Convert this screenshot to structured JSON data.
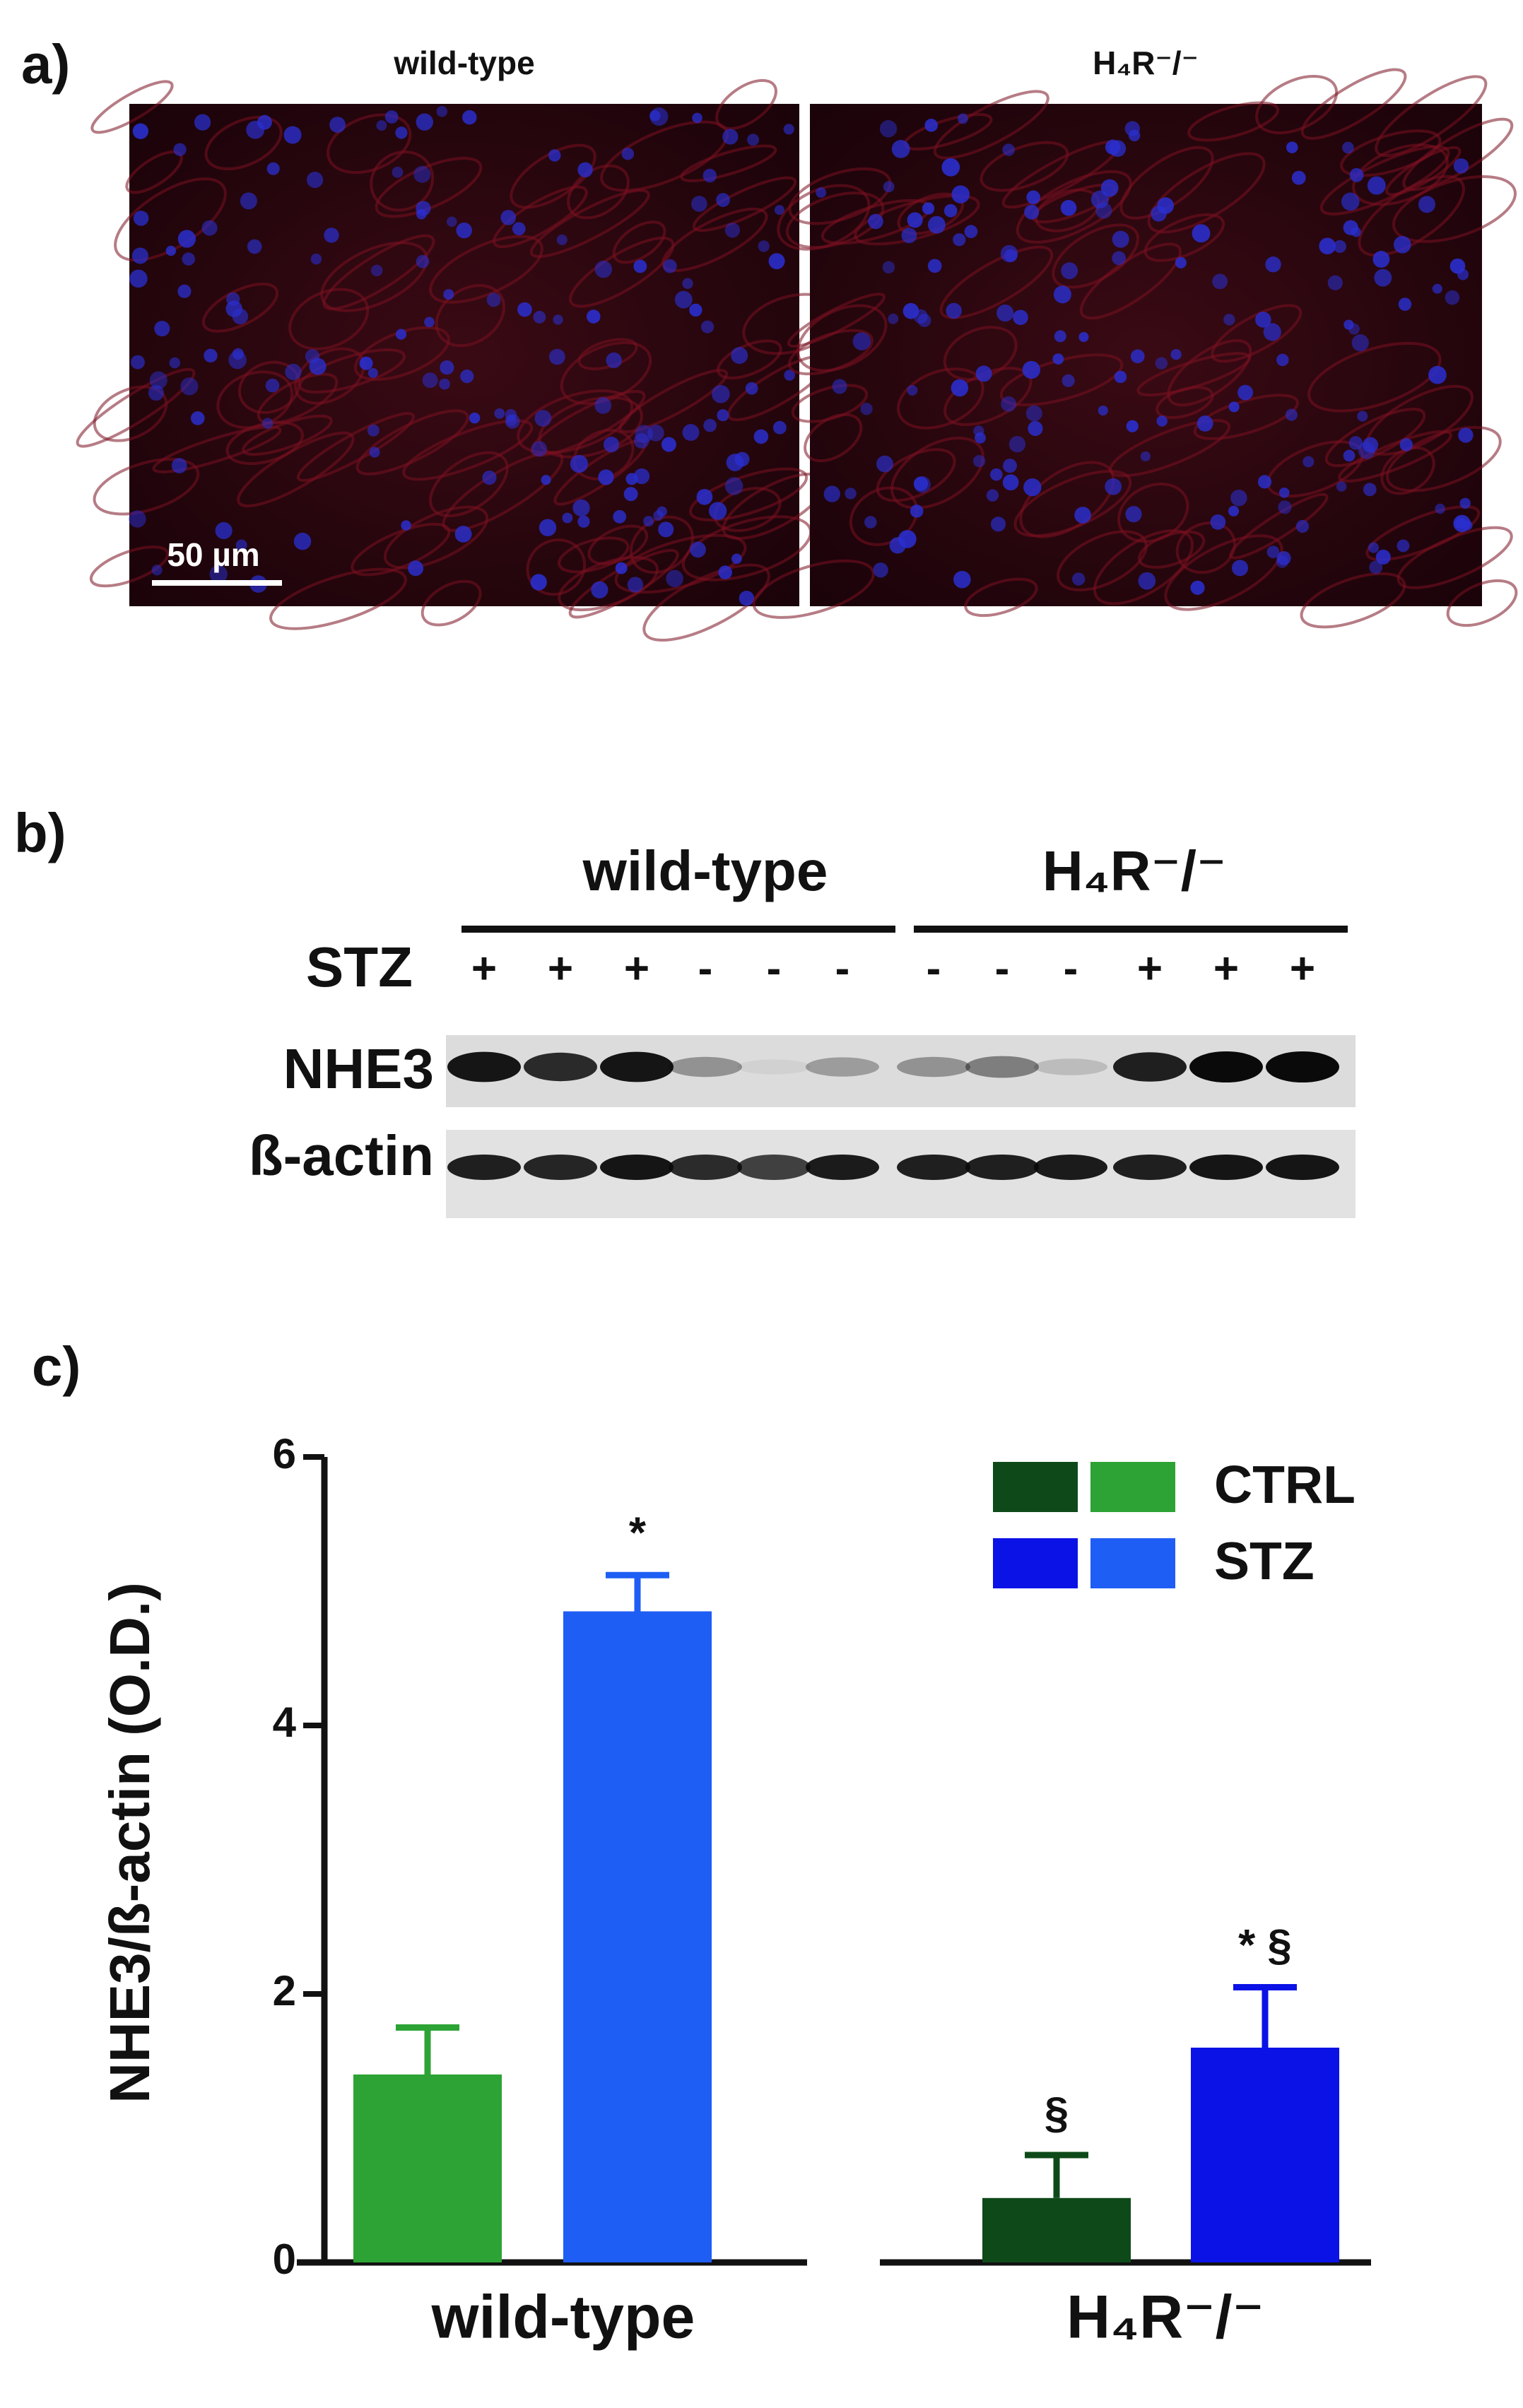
{
  "panel_a": {
    "label": "a)",
    "titles": [
      "wild-type",
      "H₄R⁻/⁻"
    ],
    "scale_bar": "50 µm"
  },
  "panel_b": {
    "label": "b)",
    "groups": [
      "wild-type",
      "H₄R⁻/⁻"
    ],
    "treatment_label": "STZ",
    "lanes": [
      "+",
      "+",
      "+",
      "-",
      "-",
      "-",
      "-",
      "-",
      "-",
      "+",
      "+",
      "+"
    ],
    "rows": [
      "NHE3",
      "ß-actin"
    ]
  },
  "chart_data": {
    "type": "bar",
    "panel_label": "c)",
    "y_label": "NHE3/ß-actin (O.D.)",
    "categories": [
      "wild-type",
      "H₄R⁻/⁻"
    ],
    "series": [
      {
        "name": "CTRL",
        "colors": [
          "#2ca334",
          "#0e4a19"
        ],
        "values": [
          1.4,
          0.48
        ],
        "errors": [
          0.35,
          0.32
        ],
        "annotations": [
          null,
          "§"
        ]
      },
      {
        "name": "STZ",
        "colors": [
          "#1f5ef4",
          "#0b12e6"
        ],
        "values": [
          4.85,
          1.6
        ],
        "errors": [
          0.27,
          0.45
        ],
        "annotations": [
          "*",
          "* §"
        ]
      }
    ],
    "ylim": [
      0,
      6
    ],
    "yticks": [
      0,
      2,
      4,
      6
    ],
    "grid": false,
    "legend": "upper right"
  }
}
